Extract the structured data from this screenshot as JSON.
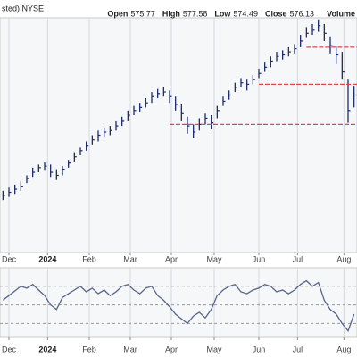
{
  "header": {
    "symbol_text": "sted) NYSE",
    "fields": [
      {
        "label": "Open",
        "value": "575.77"
      },
      {
        "label": "High",
        "value": "577.58"
      },
      {
        "label": "Low",
        "value": "574.49"
      },
      {
        "label": "Close",
        "value": "576.13"
      }
    ],
    "volume_label": "Volume"
  },
  "chart_data": [
    {
      "type": "ohlc",
      "color": "#1c2a6e",
      "categories": [
        null,
        null,
        null,
        null,
        null,
        null,
        null,
        null,
        null,
        null,
        null,
        null,
        null,
        null,
        null,
        null,
        null,
        null,
        null,
        null,
        null,
        null,
        null,
        null,
        null,
        null,
        null,
        null,
        null,
        null,
        null,
        null,
        null,
        null,
        null,
        null,
        null,
        null,
        null,
        null,
        null,
        null,
        null,
        null,
        null,
        null,
        null,
        null,
        null,
        null,
        null,
        null,
        null,
        null,
        null,
        null,
        null,
        null,
        null,
        null
      ],
      "high": [
        458,
        460,
        462,
        464,
        468,
        473,
        475,
        477,
        475,
        472,
        474,
        478,
        483,
        486,
        490,
        494,
        497,
        499,
        500,
        503,
        506,
        510,
        513,
        515,
        518,
        522,
        524,
        525,
        523,
        519,
        514,
        506,
        501,
        505,
        508,
        507,
        513,
        519,
        523,
        528,
        531,
        530,
        533,
        537,
        541,
        545,
        548,
        549,
        551,
        553,
        559,
        564,
        566,
        569,
        566,
        558,
        552,
        548,
        530,
        526
      ],
      "low": [
        452,
        454,
        456,
        458,
        463,
        467,
        470,
        471,
        467,
        465,
        468,
        473,
        477,
        481,
        484,
        488,
        490,
        493,
        494,
        497,
        500,
        503,
        507,
        509,
        512,
        515,
        518,
        519,
        515,
        510,
        503,
        495,
        492,
        497,
        501,
        498,
        505,
        513,
        517,
        522,
        525,
        523,
        527,
        531,
        535,
        538,
        542,
        543,
        545,
        547,
        551,
        557,
        559,
        561,
        555,
        547,
        540,
        530,
        502,
        512
      ],
      "close": [
        455,
        457,
        459,
        461,
        466,
        470,
        473,
        474,
        470,
        468,
        472,
        476,
        480,
        484,
        487,
        491,
        494,
        496,
        497,
        500,
        503,
        507,
        510,
        512,
        515,
        519,
        521,
        522,
        519,
        514,
        508,
        500,
        496,
        501,
        505,
        502,
        510,
        516,
        520,
        525,
        528,
        527,
        530,
        534,
        538,
        542,
        545,
        546,
        548,
        550,
        555,
        560,
        562,
        565,
        560,
        552,
        546,
        535,
        510,
        520
      ],
      "xlim": [
        -0.5,
        59.5
      ],
      "ylim": [
        418,
        570
      ],
      "xticks": [
        {
          "value": 1,
          "label": "Dec"
        },
        {
          "value": 7.5,
          "label": "2024"
        },
        {
          "value": 14.5,
          "label": "Feb"
        },
        {
          "value": 21.4,
          "label": "Mar"
        },
        {
          "value": 28.3,
          "label": "Apr"
        },
        {
          "value": 35.5,
          "label": "May"
        },
        {
          "value": 43,
          "label": "Jun"
        },
        {
          "value": 49.5,
          "label": "Jul"
        },
        {
          "value": 57.3,
          "label": "Aug"
        }
      ],
      "levels": [
        {
          "value": 501,
          "from": 28
        },
        {
          "value": 527,
          "from": 43
        },
        {
          "value": 551,
          "from": 51
        }
      ],
      "level_color": "#e0474c",
      "grid": true
    },
    {
      "type": "line",
      "color": "#56648a",
      "values": [
        55,
        60,
        65,
        70,
        68,
        72,
        66,
        60,
        50,
        45,
        58,
        62,
        66,
        70,
        64,
        68,
        62,
        66,
        60,
        64,
        70,
        72,
        66,
        62,
        68,
        70,
        60,
        55,
        48,
        40,
        35,
        30,
        38,
        42,
        36,
        45,
        60,
        66,
        70,
        72,
        64,
        62,
        66,
        68,
        72,
        70,
        64,
        66,
        62,
        66,
        72,
        76,
        70,
        74,
        55,
        45,
        40,
        30,
        22,
        40
      ],
      "xlim": [
        -0.5,
        59.5
      ],
      "ylim": [
        15,
        90
      ],
      "xticks": [
        {
          "value": 1,
          "label": "Dec"
        },
        {
          "value": 7.5,
          "label": "2024"
        },
        {
          "value": 14.5,
          "label": "Feb"
        },
        {
          "value": 21.4,
          "label": "Mar"
        },
        {
          "value": 28.3,
          "label": "Apr"
        },
        {
          "value": 35.5,
          "label": "May"
        },
        {
          "value": 43,
          "label": "Jun"
        },
        {
          "value": 49.5,
          "label": "Jul"
        },
        {
          "value": 57.3,
          "label": "Aug"
        }
      ],
      "ref_lines": [
        70,
        50,
        30
      ],
      "grid": true
    }
  ]
}
